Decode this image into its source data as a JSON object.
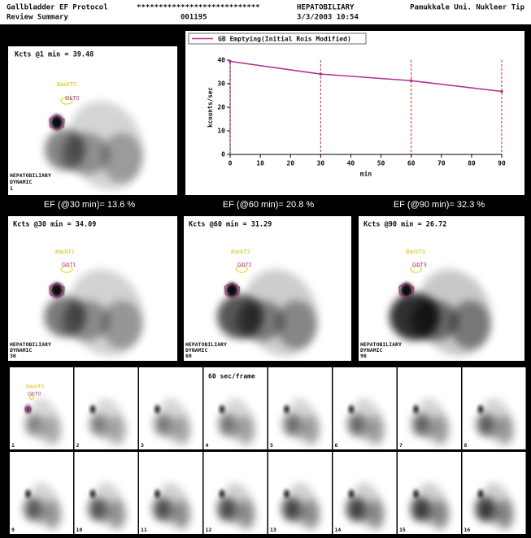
{
  "header": {
    "protocol": "Gallbladder EF Protocol",
    "view": "Review Summary",
    "patient_name": "****************************",
    "patient_id": "001195",
    "study": "HEPATOBILIARY",
    "date": "3/3/2003 10:54",
    "institution": "Pamukkale Uni. Nukleer Tip"
  },
  "first_image": {
    "title": "Kcts @1 min = 39.48",
    "roi_labels": [
      "BackT0",
      "GbT0"
    ],
    "footer": [
      "HEPATOBILIARY",
      "DYNAMIC",
      "1"
    ]
  },
  "chart_data": {
    "type": "line",
    "x": [
      0,
      30,
      60,
      90
    ],
    "series": [
      {
        "name": "GB Emptying(Initial Rois Modified)",
        "color": "#b0308c",
        "values": [
          39.48,
          34.09,
          31.29,
          26.72
        ]
      }
    ],
    "xlabel": "min",
    "ylabel": "kcounts/sec",
    "xlim": [
      0,
      90
    ],
    "xticks": [
      0,
      10,
      20,
      30,
      40,
      50,
      60,
      70,
      80,
      90
    ],
    "ylim": [
      0,
      40
    ],
    "yticks": [
      0,
      10,
      20,
      30,
      40
    ],
    "marker_line_color": "#e02020"
  },
  "ef_results": [
    "EF (@30 min)= 13.6 %",
    "EF (@60 min)= 20.8 %",
    "EF (@90 min)= 32.3 %"
  ],
  "images": [
    {
      "title": "Kcts @30 min = 34.09",
      "roi_labels": [
        "BackT1",
        "GbT1"
      ],
      "footer": [
        "HEPATOBILIARY",
        "DYNAMIC",
        "30"
      ]
    },
    {
      "title": "Kcts @60 min = 31.29",
      "roi_labels": [
        "BackT2",
        "GbT2"
      ],
      "footer": [
        "HEPATOBILIARY",
        "DYNAMIC",
        "60"
      ]
    },
    {
      "title": "Kcts @90 min = 26.72",
      "roi_labels": [
        "BackT3",
        "GbT3"
      ],
      "footer": [
        "HEPATOBILIARY",
        "DYNAMIC",
        "90"
      ]
    }
  ],
  "frames": {
    "caption": "60 sec/frame",
    "first_roi_labels": [
      "BackT0",
      "GbT0"
    ],
    "numbers": [
      1,
      2,
      3,
      4,
      5,
      6,
      7,
      8,
      9,
      10,
      11,
      12,
      13,
      14,
      15,
      16
    ]
  }
}
